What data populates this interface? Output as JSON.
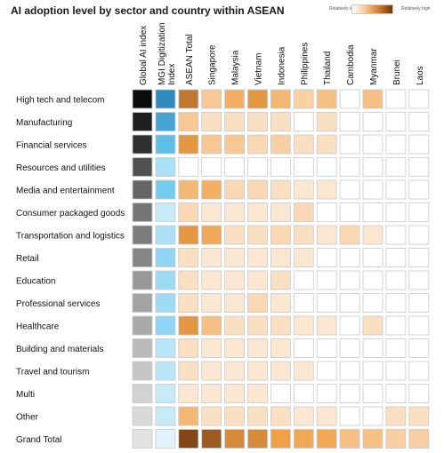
{
  "chart_data": {
    "type": "heatmap",
    "title": "AI adoption level by sector and country within ASEAN",
    "legend": {
      "low": "Relatively low",
      "high": "Relatively high"
    },
    "columns": [
      "Global AI index",
      "MGI Digitization Index",
      "ASEAN Total",
      "Singapore",
      "Malaysia",
      "Vietnam",
      "Indonesia",
      "Philippines",
      "Thailand",
      "Cambodia",
      "Myanmar",
      "Brunei",
      "Laos"
    ],
    "rows": [
      "High tech and telecom",
      "Manufacturing",
      "Financial services",
      "Resources and utilities",
      "Media and entertainment",
      "Consumer packaged goods",
      "Transportation and logistics",
      "Retail",
      "Education",
      "Professional services",
      "Healthcare",
      "Building and  materials",
      "Travel and tourism",
      "Multi",
      "Other",
      "Grand Total"
    ],
    "scales": {
      "global_ai_index": "grayscale, 0 = white, 1 = black",
      "mgi_digitization_index": "blue scale, 0 = white, 1 = dark blue",
      "countries": "orange scale, 0 = white, 1 = dark brown"
    },
    "values": [
      [
        1.0,
        0.85,
        0.7,
        0.25,
        0.4,
        0.55,
        0.35,
        0.2,
        0.3,
        0.0,
        0.3,
        0.0,
        0.0
      ],
      [
        0.92,
        0.7,
        0.25,
        0.1,
        0.1,
        0.1,
        0.1,
        0.0,
        0.1,
        0.0,
        0.0,
        0.0,
        0.0
      ],
      [
        0.85,
        0.55,
        0.55,
        0.25,
        0.25,
        0.15,
        0.2,
        0.1,
        0.1,
        0.0,
        0.0,
        0.0,
        0.0
      ],
      [
        0.7,
        0.25,
        0.0,
        0.0,
        0.0,
        0.0,
        0.0,
        0.0,
        0.0,
        0.0,
        0.0,
        0.0,
        0.0
      ],
      [
        0.62,
        0.45,
        0.35,
        0.4,
        0.15,
        0.15,
        0.1,
        0.05,
        0.05,
        0.0,
        0.0,
        0.0,
        0.0
      ],
      [
        0.55,
        0.15,
        0.15,
        0.05,
        0.05,
        0.05,
        0.05,
        0.15,
        0.0,
        0.0,
        0.0,
        0.0,
        0.0
      ],
      [
        0.52,
        0.25,
        0.55,
        0.45,
        0.1,
        0.1,
        0.15,
        0.1,
        0.05,
        0.15,
        0.05,
        0.0,
        0.0
      ],
      [
        0.48,
        0.35,
        0.1,
        0.05,
        0.05,
        0.05,
        0.05,
        0.05,
        0.0,
        0.0,
        0.0,
        0.0,
        0.0
      ],
      [
        0.4,
        0.3,
        0.1,
        0.05,
        0.05,
        0.05,
        0.1,
        0.0,
        0.0,
        0.0,
        0.0,
        0.0,
        0.0
      ],
      [
        0.35,
        0.3,
        0.1,
        0.05,
        0.05,
        0.15,
        0.05,
        0.0,
        0.0,
        0.0,
        0.0,
        0.0,
        0.0
      ],
      [
        0.32,
        0.35,
        0.55,
        0.3,
        0.1,
        0.1,
        0.1,
        0.05,
        0.05,
        0.0,
        0.1,
        0.0,
        0.0
      ],
      [
        0.25,
        0.2,
        0.1,
        0.05,
        0.05,
        0.05,
        0.05,
        0.0,
        0.0,
        0.0,
        0.0,
        0.0,
        0.0
      ],
      [
        0.2,
        0.2,
        0.1,
        0.05,
        0.05,
        0.05,
        0.05,
        0.05,
        0.0,
        0.0,
        0.0,
        0.0,
        0.0
      ],
      [
        0.15,
        0.15,
        0.05,
        0.05,
        0.05,
        0.05,
        0.0,
        0.0,
        0.0,
        0.0,
        0.0,
        0.0,
        0.0
      ],
      [
        0.12,
        0.15,
        0.35,
        0.1,
        0.1,
        0.1,
        0.1,
        0.05,
        0.05,
        0.0,
        0.0,
        0.1,
        0.1
      ],
      [
        0.08,
        0.05,
        0.95,
        0.85,
        0.6,
        0.6,
        0.5,
        0.45,
        0.45,
        0.3,
        0.3,
        0.2,
        0.2
      ]
    ]
  }
}
